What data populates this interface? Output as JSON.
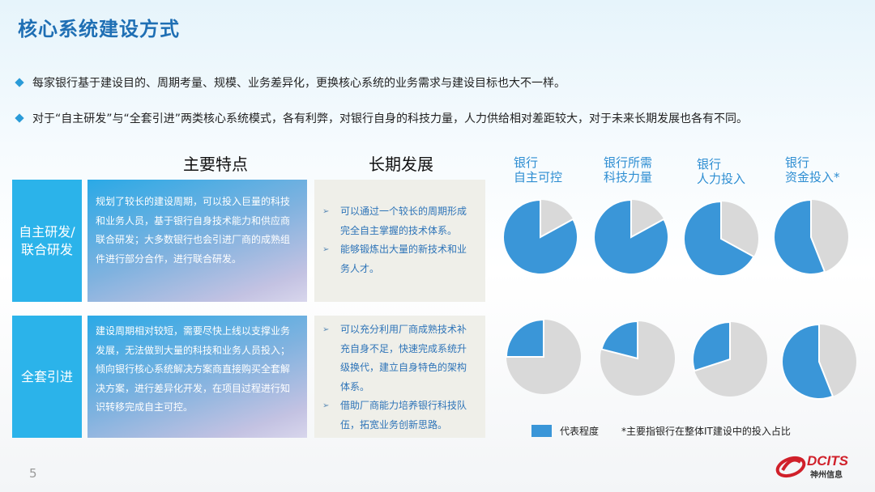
{
  "title": "核心系统建设方式",
  "bullets": [
    "每家银行基于建设目的、周期考量、规模、业务差异化，更换核心系统的业务需求与建设目标也大不一样。",
    "对于“自主研发”与“全套引进”两类核心系统模式，各有利弊，对银行自身的科技力量，人力供给相对差距较大，对于未来长期发展也各有不同。"
  ],
  "columns": {
    "features": "主要特点",
    "development": "长期发展"
  },
  "rows": [
    {
      "label": "自主研发/联合研发",
      "features": "规划了较长的建设周期，可以投入巨量的科技和业务人员，基于银行自身技术能力和供应商联合研发；大多数银行也会引进厂商的成熟组件进行部分合作，进行联合研发。",
      "development": [
        "可以通过一个较长的周期形成完全自主掌握的技术体系。",
        "能够锻炼出大量的新技术和业务人才。"
      ]
    },
    {
      "label": "全套引进",
      "features": "建设周期相对较短，需要尽快上线以支撑业务发展，无法做到大量的科技和业务人员投入；倾向银行核心系统解决方案商直接购买全套解决方案，进行差异化开发，在项目过程进行知识转移完成自主可控。",
      "development": [
        "可以充分利用厂商成熟技术补充自身不足，快速完成系统升级换代，建立自身特色的架构体系。",
        "借助厂商能力培养银行科技队伍，拓宽业务创新思路。"
      ]
    }
  ],
  "chart_data": {
    "type": "pie",
    "categories": [
      "银行\n自主可控",
      "银行所需\n科技力量",
      "银行\n人力投入",
      "银行\n资金投入*"
    ],
    "series": [
      {
        "row": "自主研发/联合研发",
        "values": [
          0.83,
          0.83,
          0.67,
          0.56
        ]
      },
      {
        "row": "全套引进",
        "values": [
          0.25,
          0.21,
          0.3,
          0.56
        ]
      }
    ],
    "legend": "代表程度",
    "note": "*主要指银行在整体IT建设中的投入占比",
    "colors": {
      "represented": "#3a96d8",
      "rest": "#d9d9d9"
    }
  },
  "page_number": "5",
  "logo": {
    "text": "DCITS",
    "subtext": "神州信息",
    "color": "#d0202a"
  }
}
